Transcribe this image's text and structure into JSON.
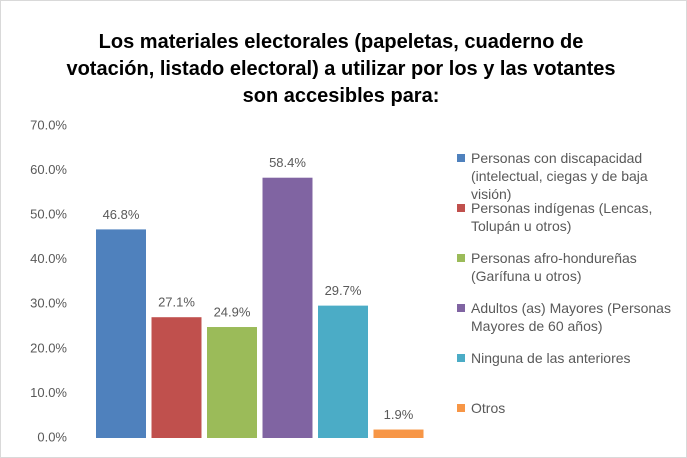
{
  "chart_data": {
    "type": "bar",
    "title": "Los materiales electorales (papeletas, cuaderno de votación, listado electoral) a utilizar por los y las votantes son accesibles para:",
    "series": [
      {
        "name": "Personas con discapacidad (intelectual, ciegas y de baja visión)",
        "color": "#4f81bd",
        "values": [
          46.8
        ],
        "value_labels": [
          "46.8%"
        ]
      },
      {
        "name": "Personas indígenas (Lencas, Tolupán u otros)",
        "color": "#c0504d",
        "values": [
          27.1
        ],
        "value_labels": [
          "27.1%"
        ]
      },
      {
        "name": "Personas afro-hondureñas (Garífuna u otros)",
        "color": "#9bbb59",
        "values": [
          24.9
        ],
        "value_labels": [
          "24.9%"
        ]
      },
      {
        "name": "Adultos (as) Mayores (Personas Mayores de 60 años)",
        "color": "#8064a2",
        "values": [
          58.4
        ],
        "value_labels": [
          "58.4%"
        ]
      },
      {
        "name": "Ninguna de las anteriores",
        "color": "#4bacc6",
        "values": [
          29.7
        ],
        "value_labels": [
          "29.7%"
        ]
      },
      {
        "name": "Otros",
        "color": "#f79646",
        "values": [
          1.9
        ],
        "value_labels": [
          "1.9%"
        ]
      }
    ],
    "ylim": [
      0,
      70
    ],
    "yticks": [
      {
        "value": 0,
        "label": "0.0%"
      },
      {
        "value": 10,
        "label": "10.0%"
      },
      {
        "value": 20,
        "label": "20.0%"
      },
      {
        "value": 30,
        "label": "30.0%"
      },
      {
        "value": 40,
        "label": "40.0%"
      },
      {
        "value": 50,
        "label": "50.0%"
      },
      {
        "value": 60,
        "label": "60.0%"
      },
      {
        "value": 70,
        "label": "70.0%"
      }
    ],
    "legend": "right"
  }
}
